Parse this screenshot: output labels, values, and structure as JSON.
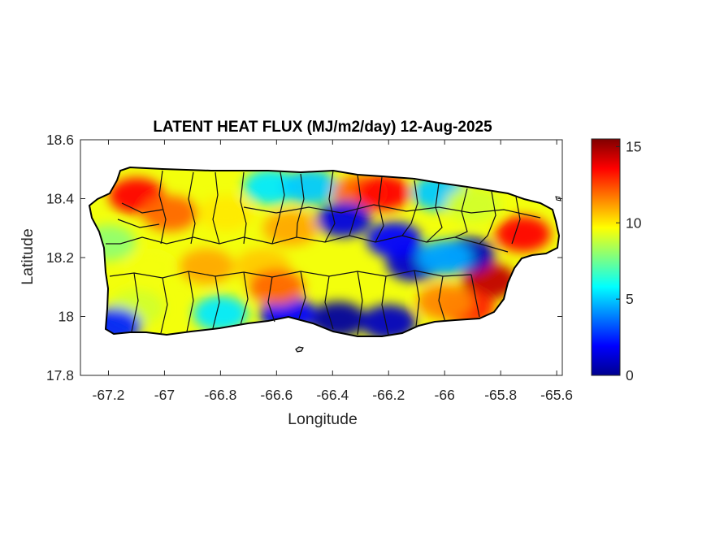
{
  "figure": {
    "title": "LATENT HEAT FLUX (MJ/m2/day) 12-Aug-2025",
    "xlabel": "Longitude",
    "ylabel": "Latitude"
  },
  "chart_data": {
    "type": "heatmap",
    "title": "LATENT HEAT FLUX (MJ/m2/day) 12-Aug-2025",
    "xlabel": "Longitude",
    "ylabel": "Latitude",
    "xlim": [
      -67.3,
      -65.58
    ],
    "ylim": [
      17.8,
      18.6
    ],
    "xticks": [
      -67.2,
      -67,
      -66.8,
      -66.6,
      -66.4,
      -66.2,
      -66,
      -65.8,
      -65.6
    ],
    "xtick_labels": [
      "-67.2",
      "-67",
      "-66.8",
      "-66.6",
      "-66.4",
      "-66.2",
      "-66",
      "-65.8",
      "-65.6"
    ],
    "yticks": [
      17.8,
      18,
      18.2,
      18.4,
      18.6
    ],
    "ytick_labels": [
      "17.8",
      "18",
      "18.2",
      "18.4",
      "18.6"
    ],
    "colorbar": {
      "colormap": "jet",
      "range": [
        0,
        15.5
      ],
      "ticks": [
        0,
        5,
        10,
        15
      ],
      "tick_labels": [
        "0",
        "5",
        "10",
        "15"
      ]
    },
    "grid": false,
    "region": "Puerto Rico municipal boundaries",
    "field_samples": [
      {
        "lon": -67.1,
        "lat": 18.41,
        "value": 13.5
      },
      {
        "lon": -66.98,
        "lat": 18.35,
        "value": 12.0
      },
      {
        "lon": -66.78,
        "lat": 18.35,
        "value": 10.0
      },
      {
        "lon": -66.62,
        "lat": 18.44,
        "value": 5.5
      },
      {
        "lon": -66.48,
        "lat": 18.44,
        "value": 5.0
      },
      {
        "lon": -66.3,
        "lat": 18.42,
        "value": 12.0
      },
      {
        "lon": -66.22,
        "lat": 18.42,
        "value": 13.5
      },
      {
        "lon": -66.02,
        "lat": 18.42,
        "value": 5.0
      },
      {
        "lon": -65.9,
        "lat": 18.38,
        "value": 9.0
      },
      {
        "lon": -65.72,
        "lat": 18.28,
        "value": 13.5
      },
      {
        "lon": -65.84,
        "lat": 18.12,
        "value": 14.5
      },
      {
        "lon": -65.92,
        "lat": 18.03,
        "value": 13.0
      },
      {
        "lon": -65.92,
        "lat": 18.21,
        "value": 1.0
      },
      {
        "lon": -66.11,
        "lat": 18.18,
        "value": 1.2
      },
      {
        "lon": -66.18,
        "lat": 18.26,
        "value": 2.0
      },
      {
        "lon": -66.36,
        "lat": 18.33,
        "value": 1.5
      },
      {
        "lon": -66.38,
        "lat": 17.99,
        "value": 0.5
      },
      {
        "lon": -66.2,
        "lat": 17.98,
        "value": 1.0
      },
      {
        "lon": -66.56,
        "lat": 18.01,
        "value": 2.0
      },
      {
        "lon": -66.8,
        "lat": 18.01,
        "value": 5.5
      },
      {
        "lon": -67.1,
        "lat": 18.03,
        "value": 9.0
      },
      {
        "lon": -67.18,
        "lat": 17.97,
        "value": 2.5
      },
      {
        "lon": -67.2,
        "lat": 18.25,
        "value": 8.0
      },
      {
        "lon": -67.05,
        "lat": 18.17,
        "value": 9.5
      },
      {
        "lon": -66.85,
        "lat": 18.17,
        "value": 11.0
      },
      {
        "lon": -66.65,
        "lat": 18.17,
        "value": 10.5
      },
      {
        "lon": -66.55,
        "lat": 18.3,
        "value": 11.0
      },
      {
        "lon": -66.0,
        "lat": 18.2,
        "value": 4.5
      },
      {
        "lon": -66.0,
        "lat": 18.05,
        "value": 11.5
      },
      {
        "lon": -66.6,
        "lat": 18.1,
        "value": 12.0
      }
    ]
  }
}
